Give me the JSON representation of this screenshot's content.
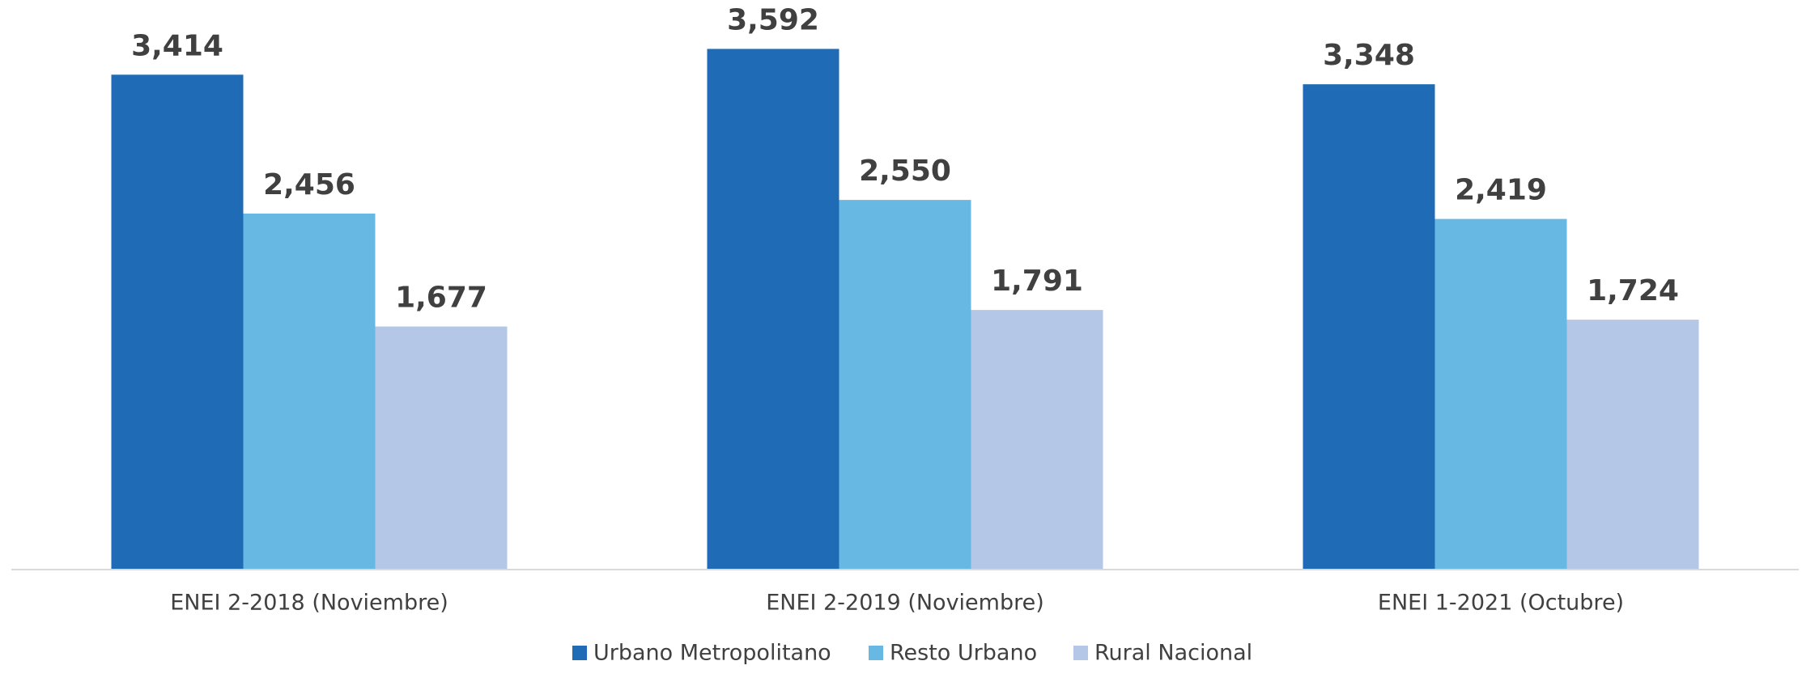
{
  "chart_data": {
    "type": "bar",
    "categories": [
      "ENEI 2-2018 (Noviembre)",
      "ENEI 2-2019 (Noviembre)",
      "ENEI 1-2021 (Octubre)"
    ],
    "series": [
      {
        "name": "Urbano Metropolitano",
        "color": "#1f6bb5",
        "values": [
          3414,
          3592,
          3348
        ],
        "value_labels": [
          "3,414",
          "3,592",
          "3,348"
        ]
      },
      {
        "name": "Resto Urbano",
        "color": "#67b8e3",
        "values": [
          2456,
          2550,
          2419
        ],
        "value_labels": [
          "2,456",
          "2,550",
          "2,419"
        ]
      },
      {
        "name": "Rural Nacional",
        "color": "#b4c7e7",
        "values": [
          1677,
          1791,
          1724
        ],
        "value_labels": [
          "1,677",
          "1,791",
          "1,724"
        ]
      }
    ],
    "ylim": [
      0,
      3600
    ],
    "legend": "bottom"
  }
}
